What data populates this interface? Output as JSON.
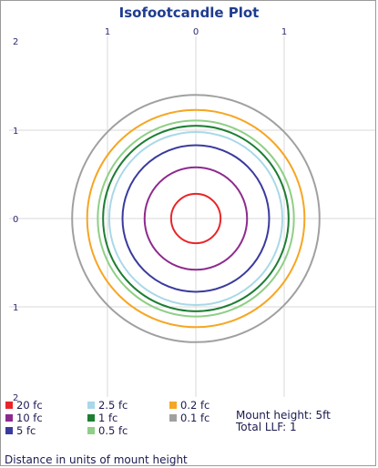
{
  "chart_data": {
    "type": "contour",
    "title": "Isofootcandle Plot",
    "x_ticks": [
      {
        "value": -1,
        "label": "1"
      },
      {
        "value": 0,
        "label": "0"
      },
      {
        "value": 1,
        "label": "1"
      }
    ],
    "y_ticks": [
      {
        "value": 2,
        "label": "2"
      },
      {
        "value": 1,
        "label": "1"
      },
      {
        "value": 0,
        "label": "0"
      },
      {
        "value": -1,
        "label": "1"
      },
      {
        "value": -2,
        "label": "2"
      }
    ],
    "xlim": [
      -2.1,
      2.0
    ],
    "ylim": [
      -2.0,
      2.0
    ],
    "grid": true,
    "series": [
      {
        "name": "20 fc",
        "radius": 0.28,
        "color": "#e8262a"
      },
      {
        "name": "10 fc",
        "radius": 0.58,
        "color": "#8e2a8e"
      },
      {
        "name": "5 fc",
        "radius": 0.83,
        "color": "#3a3a9e"
      },
      {
        "name": "2.5 fc",
        "radius": 0.98,
        "color": "#a9d8e8"
      },
      {
        "name": "1 fc",
        "radius": 1.05,
        "color": "#1e7e34"
      },
      {
        "name": "0.5 fc",
        "radius": 1.11,
        "color": "#8fcf86"
      },
      {
        "name": "0.2 fc",
        "radius": 1.23,
        "color": "#f6a623"
      },
      {
        "name": "0.1 fc",
        "radius": 1.4,
        "color": "#a0a0a0"
      }
    ],
    "legend_placement": "bottom",
    "xlabel": "Distance in units of mount height"
  },
  "info": {
    "mount_height": "Mount height: 5ft",
    "total_llf": "Total LLF: 1"
  }
}
